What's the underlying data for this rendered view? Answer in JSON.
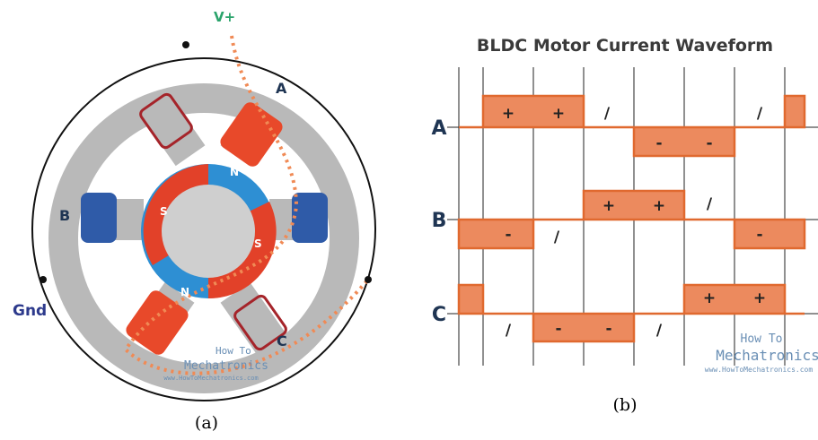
{
  "figure_a": {
    "labels": {
      "supply": "V+",
      "ground": "Gnd",
      "phase_a": "A",
      "phase_b": "B",
      "phase_c": "C",
      "north": "N",
      "south": "S"
    },
    "caption": "(a)"
  },
  "figure_b": {
    "title": "BLDC Motor Current Waveform",
    "rows": [
      {
        "label": "A",
        "marks": [
          "+",
          "+",
          "/",
          "-",
          "-",
          "/"
        ]
      },
      {
        "label": "B",
        "marks": [
          "-",
          "/",
          "+",
          "+",
          "/",
          "-"
        ]
      },
      {
        "label": "C",
        "marks": [
          "/",
          "-",
          "-",
          "/",
          "+",
          "+"
        ]
      }
    ],
    "caption": "(b)"
  },
  "watermark": {
    "brand_top": "How To",
    "brand_bottom": "Mechatronics",
    "url": "www.HowToMechatronics.com"
  }
}
